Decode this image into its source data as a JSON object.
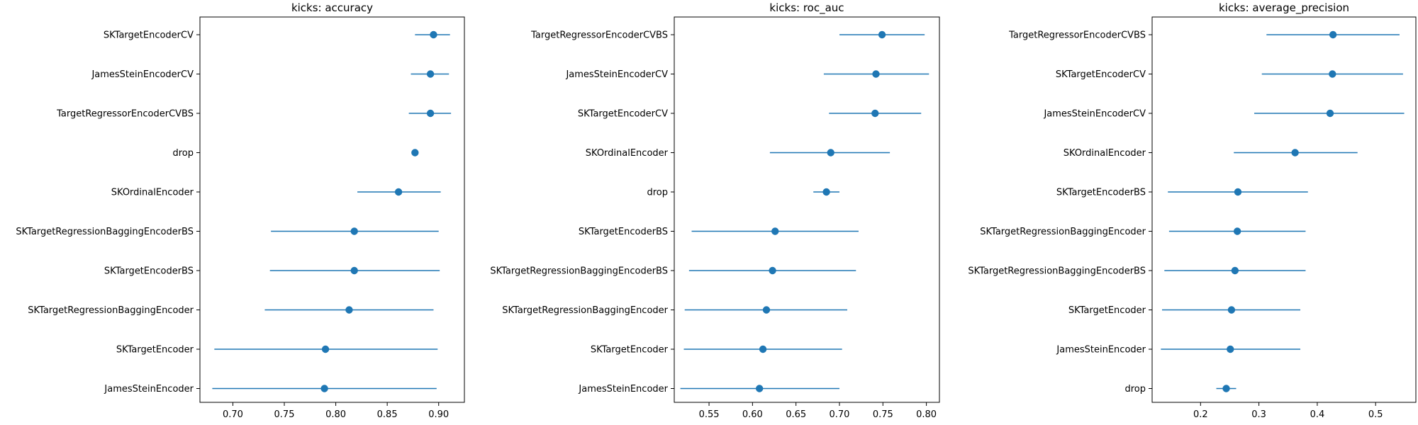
{
  "chart_data": [
    {
      "type": "scatter",
      "title": "kicks: accuracy",
      "xlabel": "",
      "ylabel": "",
      "xlim": [
        0.668,
        0.925
      ],
      "xticks": [
        0.7,
        0.75,
        0.8,
        0.85,
        0.9
      ],
      "xtick_labels": [
        "0.70",
        "0.75",
        "0.80",
        "0.85",
        "0.90"
      ],
      "grid": false,
      "categories": [
        "SKTargetEncoderCV",
        "JamesSteinEncoderCV",
        "TargetRegressorEncoderCVBS",
        "drop",
        "SKOrdinalEncoder",
        "SKTargetRegressionBaggingEncoderBS",
        "SKTargetEncoderBS",
        "SKTargetRegressionBaggingEncoder",
        "SKTargetEncoder",
        "JamesSteinEncoder"
      ],
      "values": [
        0.895,
        0.892,
        0.892,
        0.877,
        0.861,
        0.818,
        0.818,
        0.813,
        0.79,
        0.789
      ],
      "err_low": [
        0.877,
        0.873,
        0.871,
        0.877,
        0.821,
        0.737,
        0.736,
        0.731,
        0.682,
        0.68
      ],
      "err_high": [
        0.911,
        0.91,
        0.912,
        0.877,
        0.902,
        0.9,
        0.901,
        0.895,
        0.899,
        0.898
      ]
    },
    {
      "type": "scatter",
      "title": "kicks: roc_auc",
      "xlabel": "",
      "ylabel": "",
      "xlim": [
        0.51,
        0.815
      ],
      "xticks": [
        0.55,
        0.6,
        0.65,
        0.7,
        0.75,
        0.8
      ],
      "xtick_labels": [
        "0.55",
        "0.60",
        "0.65",
        "0.70",
        "0.75",
        "0.80"
      ],
      "grid": false,
      "categories": [
        "TargetRegressorEncoderCVBS",
        "JamesSteinEncoderCV",
        "SKTargetEncoderCV",
        "SKOrdinalEncoder",
        "drop",
        "SKTargetEncoderBS",
        "SKTargetRegressionBaggingEncoderBS",
        "SKTargetRegressionBaggingEncoder",
        "SKTargetEncoder",
        "JamesSteinEncoder"
      ],
      "values": [
        0.749,
        0.742,
        0.741,
        0.69,
        0.685,
        0.626,
        0.623,
        0.616,
        0.612,
        0.608
      ],
      "err_low": [
        0.7,
        0.682,
        0.688,
        0.62,
        0.67,
        0.53,
        0.527,
        0.522,
        0.521,
        0.517
      ],
      "err_high": [
        0.798,
        0.803,
        0.794,
        0.758,
        0.7,
        0.722,
        0.719,
        0.709,
        0.703,
        0.7
      ]
    },
    {
      "type": "scatter",
      "title": "kicks: average_precision",
      "xlabel": "",
      "ylabel": "",
      "xlim": [
        0.117,
        0.569
      ],
      "xticks": [
        0.2,
        0.3,
        0.4,
        0.5
      ],
      "xtick_labels": [
        "0.2",
        "0.3",
        "0.4",
        "0.5"
      ],
      "grid": false,
      "categories": [
        "TargetRegressorEncoderCVBS",
        "SKTargetEncoderCV",
        "JamesSteinEncoderCV",
        "SKOrdinalEncoder",
        "SKTargetEncoderBS",
        "SKTargetRegressionBaggingEncoder",
        "SKTargetRegressionBaggingEncoderBS",
        "SKTargetEncoder",
        "JamesSteinEncoder",
        "drop"
      ],
      "values": [
        0.427,
        0.426,
        0.422,
        0.362,
        0.264,
        0.263,
        0.259,
        0.253,
        0.251,
        0.244
      ],
      "err_low": [
        0.313,
        0.305,
        0.292,
        0.257,
        0.144,
        0.146,
        0.138,
        0.134,
        0.132,
        0.227
      ],
      "err_high": [
        0.541,
        0.547,
        0.549,
        0.469,
        0.384,
        0.38,
        0.38,
        0.371,
        0.371,
        0.261
      ]
    }
  ]
}
